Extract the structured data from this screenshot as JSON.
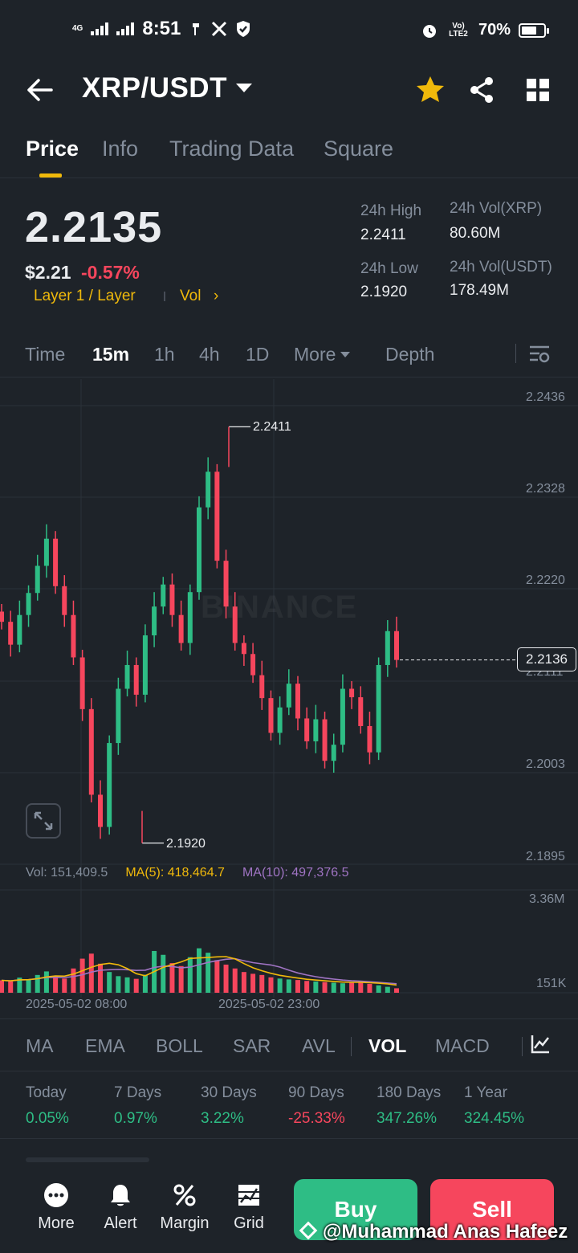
{
  "status_bar": {
    "network_left": "4G",
    "time": "8:51",
    "network_right": "Vo) LTE2",
    "battery": "70%",
    "battery_level": 0.7
  },
  "header": {
    "pair": "XRP/USDT",
    "icons": [
      "back-arrow-icon",
      "star-icon",
      "share-icon",
      "grid-icon"
    ],
    "favorite_color": "#f0b90b"
  },
  "tabs": [
    {
      "label": "Price",
      "active": true
    },
    {
      "label": "Info",
      "active": false
    },
    {
      "label": "Trading Data",
      "active": false
    },
    {
      "label": "Square",
      "active": false
    }
  ],
  "price": {
    "last": "2.2135",
    "usd": "$2.21",
    "change": "-0.57%",
    "tag1": "Layer 1 / Layer",
    "tag2": "Vol",
    "tag2_chevron": "›"
  },
  "stats": {
    "high_label": "24h High",
    "high_value": "2.2411",
    "low_label": "24h Low",
    "low_value": "2.1920",
    "vol_base_label": "24h Vol(XRP)",
    "vol_base_value": "80.60M",
    "vol_quote_label": "24h Vol(USDT)",
    "vol_quote_value": "178.49M"
  },
  "intervals": {
    "items": [
      "Time",
      "15m",
      "1h",
      "4h",
      "1D",
      "More",
      "Depth"
    ],
    "active": "15m"
  },
  "chart": {
    "price_axis": [
      "2.2436",
      "2.2328",
      "2.2220",
      "2.2111",
      "2.2003",
      "2.1895"
    ],
    "current_price_label": "2.2136",
    "high_label": "2.2411",
    "low_label": "2.1920",
    "watermark": "BINANCE",
    "volume_axis": [
      "3.36M",
      "151K"
    ],
    "vol_legend": {
      "vol": "Vol: 151,409.5",
      "ma5": "MA(5): 418,464.7",
      "ma10": "MA(10): 497,376.5"
    },
    "dates": [
      "2025-05-02 08:00",
      "2025-05-02 23:00"
    ],
    "colors": {
      "up": "#2ebd85",
      "down": "#f6465d",
      "ma5": "#f0b90b",
      "ma10": "#a074c4"
    }
  },
  "chart_data": {
    "type": "candlestick",
    "interval": "15m",
    "ylim": [
      2.1895,
      2.2436
    ],
    "price_ticks": [
      2.2436,
      2.2328,
      2.222,
      2.2111,
      2.2003,
      2.1895
    ],
    "x_ticks": [
      "2025-05-02 08:00",
      "2025-05-02 23:00"
    ],
    "high": 2.2411,
    "low": 2.192,
    "last": 2.2136,
    "series": [
      {
        "name": "price",
        "values": [
          2.2181,
          2.2154,
          2.2189,
          2.2215,
          2.2247,
          2.2279,
          2.2223,
          2.2189,
          2.2139,
          2.2078,
          2.1977,
          2.1939,
          2.2038,
          2.2102,
          2.213,
          2.2095,
          2.2165,
          2.2199,
          2.2225,
          2.2189,
          2.2156,
          2.2216,
          2.2316,
          2.2358,
          2.2253,
          2.2199,
          2.2156,
          2.2143,
          2.2118,
          2.2091,
          2.205,
          2.208,
          2.2108,
          2.2067,
          2.204,
          2.2066,
          2.2017,
          2.2036,
          2.2102,
          2.2092,
          2.2058,
          2.2027,
          2.213,
          2.217,
          2.2136
        ]
      },
      {
        "name": "Vol",
        "values": [
          420000,
          380000,
          510000,
          460000,
          600000,
          720000,
          540000,
          480000,
          820000,
          1150000,
          1320000,
          980000,
          700000,
          560000,
          520000,
          470000,
          610000,
          1410000,
          1280000,
          1000000,
          900000,
          1200000,
          1500000,
          1350000,
          1100000,
          950000,
          820000,
          700000,
          640000,
          600000,
          520000,
          480000,
          450000,
          430000,
          400000,
          380000,
          360000,
          340000,
          320000,
          360000,
          380000,
          300000,
          250000,
          200000,
          151409.5
        ]
      }
    ]
  },
  "indicators": {
    "items": [
      "MA",
      "EMA",
      "BOLL",
      "SAR",
      "AVL",
      "VOL",
      "MACD"
    ],
    "active": "VOL"
  },
  "performance": [
    {
      "label": "Today",
      "value": "0.05%",
      "dir": "up"
    },
    {
      "label": "7 Days",
      "value": "0.97%",
      "dir": "up"
    },
    {
      "label": "30 Days",
      "value": "3.22%",
      "dir": "up"
    },
    {
      "label": "90 Days",
      "value": "-25.33%",
      "dir": "down"
    },
    {
      "label": "180 Days",
      "value": "347.26%",
      "dir": "up"
    },
    {
      "label": "1 Year",
      "value": "324.45%",
      "dir": "up"
    }
  ],
  "bottom_bar": {
    "more": "More",
    "alert": "Alert",
    "margin": "Margin",
    "grid": "Grid",
    "buy": "Buy",
    "sell": "Sell",
    "credit": "@Muhammad Anas Hafeez"
  }
}
